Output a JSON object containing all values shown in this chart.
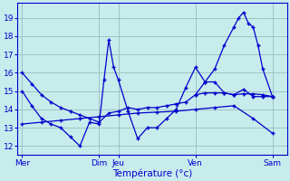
{
  "xlabel": "Température (°c)",
  "background_color": "#c8ecec",
  "grid_color": "#99bbbb",
  "line_color": "#0000cc",
  "ylim": [
    11.5,
    19.8
  ],
  "yticks": [
    12,
    13,
    14,
    15,
    16,
    17,
    18,
    19
  ],
  "day_labels": [
    "Mer",
    "Dim",
    "Jeu",
    "Ven",
    "Sam"
  ],
  "day_x": [
    0,
    8,
    10,
    18,
    26
  ],
  "xlim": [
    -0.5,
    27.5
  ],
  "lines": [
    {
      "x": [
        0,
        1,
        2,
        3,
        4,
        5,
        6,
        7,
        8,
        9,
        10,
        11,
        12,
        13,
        14,
        15,
        16,
        17,
        18,
        19,
        20,
        21,
        22,
        23,
        24,
        25,
        26
      ],
      "y": [
        16.0,
        15.4,
        14.8,
        14.4,
        14.1,
        13.9,
        13.7,
        13.5,
        13.3,
        13.8,
        13.9,
        14.1,
        14.0,
        14.1,
        14.1,
        14.2,
        14.3,
        14.4,
        14.8,
        14.9,
        14.9,
        14.9,
        14.8,
        14.85,
        14.85,
        14.8,
        14.7
      ]
    },
    {
      "x": [
        0,
        2,
        4,
        6,
        8,
        10,
        12,
        14,
        16,
        18,
        20,
        22,
        24,
        26
      ],
      "y": [
        13.2,
        13.3,
        13.4,
        13.5,
        13.6,
        13.7,
        13.8,
        13.85,
        13.9,
        14.0,
        14.1,
        14.2,
        13.5,
        12.7
      ]
    },
    {
      "x": [
        0,
        1,
        2,
        3,
        4,
        5,
        6,
        7,
        8,
        8.5,
        9,
        9.5,
        10,
        11,
        12,
        13,
        14,
        15,
        16,
        17,
        18,
        19,
        20,
        21,
        22,
        23,
        24,
        25,
        26
      ],
      "y": [
        15.0,
        14.2,
        13.5,
        13.2,
        13.0,
        12.5,
        12.0,
        13.3,
        13.2,
        15.6,
        17.8,
        16.3,
        15.6,
        13.9,
        12.4,
        13.0,
        13.0,
        13.5,
        14.0,
        15.2,
        16.3,
        15.5,
        15.5,
        14.9,
        14.8,
        15.1,
        14.7,
        14.7,
        14.7
      ]
    },
    {
      "x": [
        18,
        19,
        20,
        21,
        22,
        22.5,
        23,
        23.5,
        24,
        24.5,
        25,
        26
      ],
      "y": [
        14.8,
        15.5,
        16.2,
        17.5,
        18.5,
        19.0,
        19.3,
        18.7,
        18.5,
        17.5,
        16.2,
        14.7
      ]
    }
  ]
}
